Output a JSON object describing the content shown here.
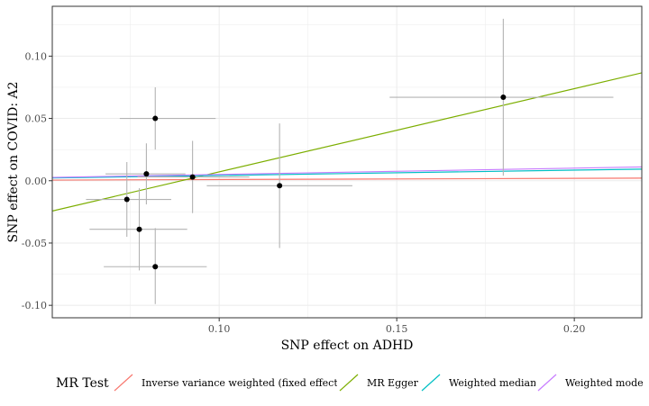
{
  "chart_data": {
    "type": "scatter",
    "xlabel": "SNP effect on ADHD",
    "ylabel": "SNP effect on COVID: A2",
    "xlim": [
      0.053,
      0.219
    ],
    "ylim": [
      -0.11,
      0.14
    ],
    "grid": true,
    "x_ticks": [
      {
        "value": 0.1,
        "label": "0.10"
      },
      {
        "value": 0.15,
        "label": "0.15"
      },
      {
        "value": 0.2,
        "label": "0.20"
      }
    ],
    "y_ticks": [
      {
        "value": 0.1,
        "label": "0.10"
      },
      {
        "value": 0.05,
        "label": "0.05"
      },
      {
        "value": 0.0,
        "label": "0.00"
      },
      {
        "value": -0.05,
        "label": "-0.05"
      },
      {
        "value": -0.1,
        "label": "-0.10"
      }
    ],
    "points": [
      {
        "x": 0.082,
        "y": 0.05,
        "x_lo": 0.072,
        "x_hi": 0.099,
        "y_lo": 0.025,
        "y_hi": 0.075
      },
      {
        "x": 0.0795,
        "y": 0.0055,
        "x_lo": 0.068,
        "x_hi": 0.0905,
        "y_lo": -0.019,
        "y_hi": 0.03
      },
      {
        "x": 0.074,
        "y": -0.015,
        "x_lo": 0.0625,
        "x_hi": 0.0865,
        "y_lo": -0.045,
        "y_hi": 0.015
      },
      {
        "x": 0.0775,
        "y": -0.039,
        "x_lo": 0.0635,
        "x_hi": 0.091,
        "y_lo": -0.072,
        "y_hi": -0.006
      },
      {
        "x": 0.082,
        "y": -0.069,
        "x_lo": 0.0675,
        "x_hi": 0.0965,
        "y_lo": -0.099,
        "y_hi": -0.038
      },
      {
        "x": 0.0925,
        "y": 0.003,
        "x_lo": 0.077,
        "x_hi": 0.1085,
        "y_lo": -0.026,
        "y_hi": 0.032
      },
      {
        "x": 0.117,
        "y": -0.004,
        "x_lo": 0.0965,
        "x_hi": 0.1375,
        "y_lo": -0.054,
        "y_hi": 0.046
      },
      {
        "x": 0.18,
        "y": 0.067,
        "x_lo": 0.148,
        "x_hi": 0.211,
        "y_lo": 0.004,
        "y_hi": 0.13
      }
    ],
    "lines": [
      {
        "name": "Inverse variance weighted (fixed effects)",
        "color": "#F8766D",
        "slope": 0.0095,
        "intercept": 0.0
      },
      {
        "name": "MR Egger",
        "color": "#7CAE00",
        "slope": 0.668,
        "intercept": -0.0597
      },
      {
        "name": "Weighted median",
        "color": "#00BFC4",
        "slope": 0.0425,
        "intercept": 0.0
      },
      {
        "name": "Weighted mode",
        "color": "#C77CFF",
        "slope": 0.0505,
        "intercept": 0.0
      }
    ],
    "legend": {
      "title": "MR Test",
      "position": "bottom",
      "entries": [
        "Inverse variance weighted (fixed effects)",
        "MR Egger",
        "Weighted median",
        "Weighted mode"
      ]
    }
  }
}
